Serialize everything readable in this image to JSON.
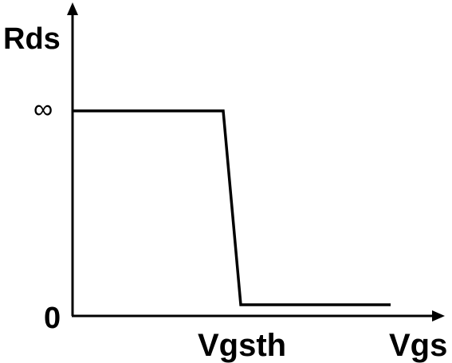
{
  "axes": {
    "y_label": "Rds",
    "x_label": "Vgs",
    "y_tick_high": "∞",
    "y_tick_low": "0",
    "x_tick": "Vgsth"
  },
  "curve": {
    "description_points": [
      {
        "vgs": "0",
        "rds": "∞"
      },
      {
        "vgs": "Vgsth",
        "rds": "∞→0"
      },
      {
        "vgs": "end",
        "rds": "0"
      }
    ]
  },
  "colors": {
    "line": "#000000",
    "background": "#ffffff"
  }
}
